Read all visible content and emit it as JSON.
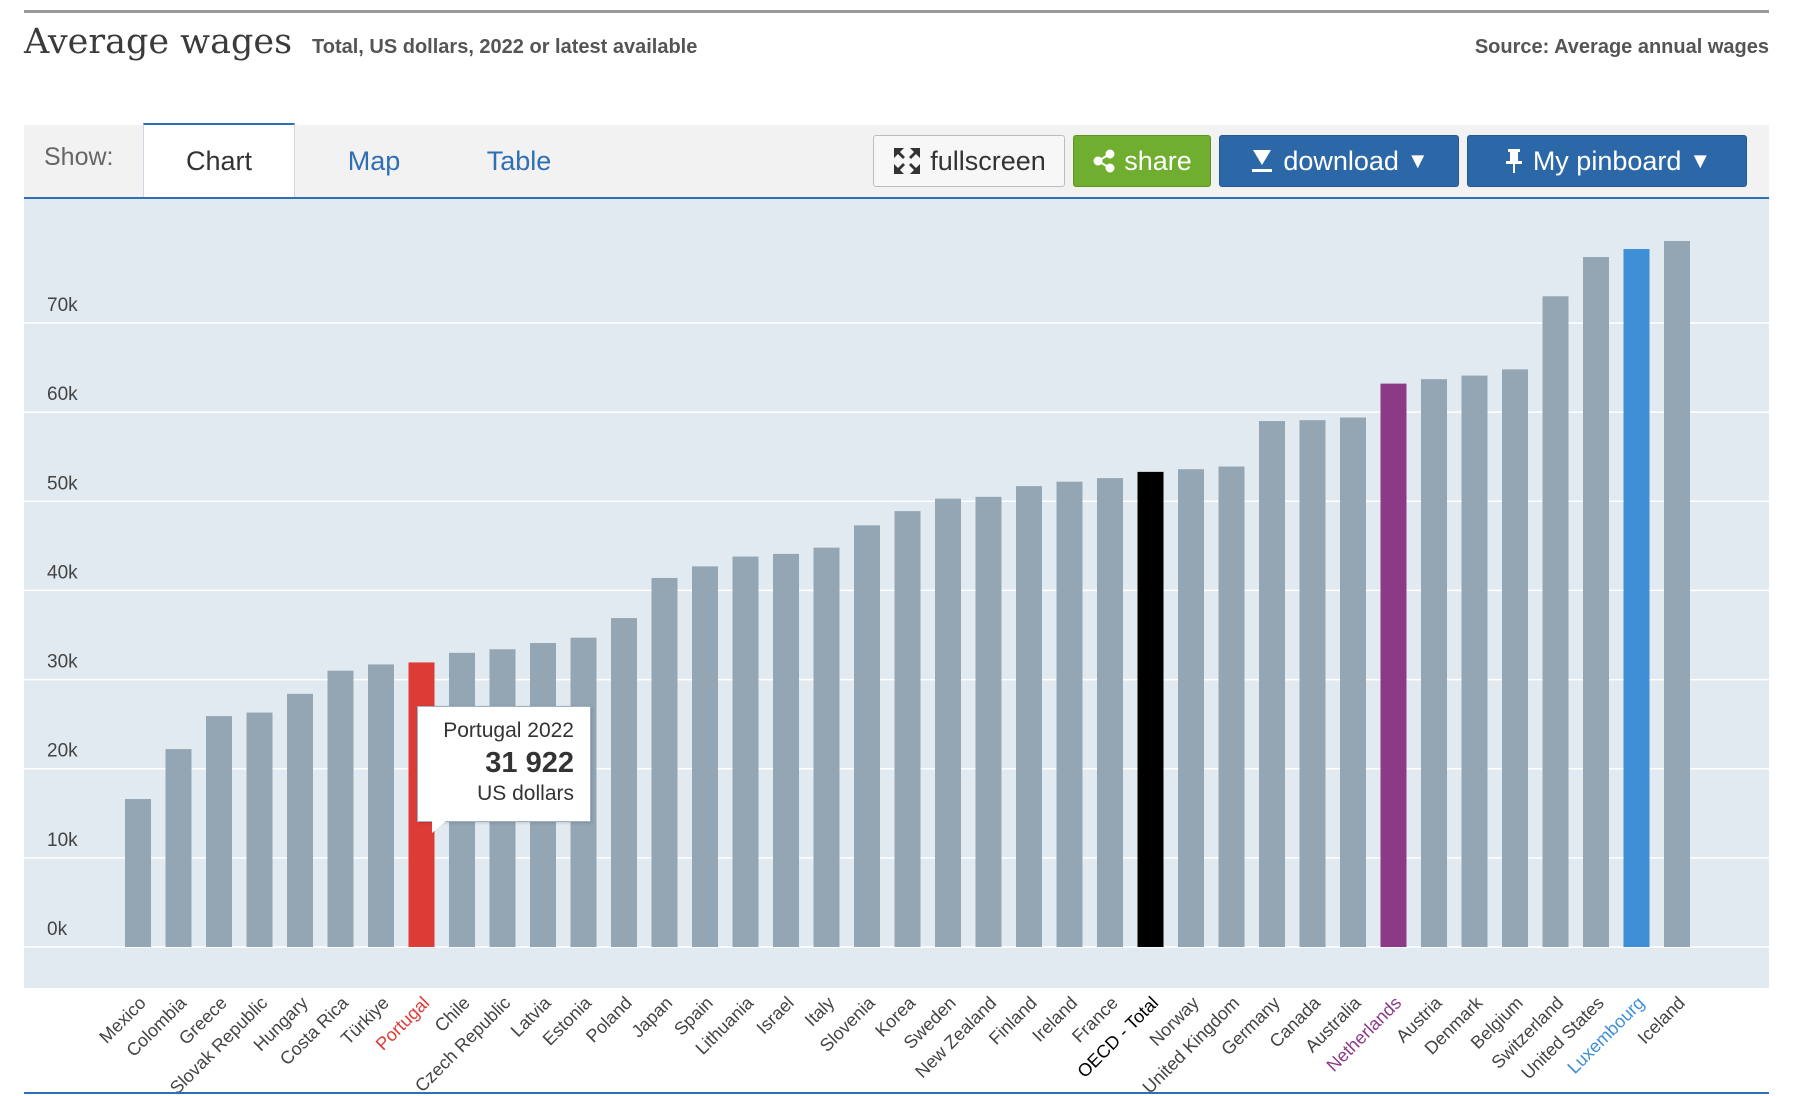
{
  "header": {
    "title": "Average wages",
    "subtitle": "Total, US dollars, 2022 or latest available",
    "source": "Source: Average annual wages"
  },
  "toolbar": {
    "show_label": "Show:",
    "tabs": [
      {
        "label": "Chart",
        "active": true
      },
      {
        "label": "Map",
        "active": false
      },
      {
        "label": "Table",
        "active": false
      }
    ],
    "fullscreen_label": "fullscreen",
    "share_label": "share",
    "download_label": "download",
    "pinboard_label": "My pinboard",
    "dropdown_glyph": "▼"
  },
  "tooltip": {
    "title": "Portugal 2022",
    "value": "31 922",
    "unit": "US dollars"
  },
  "colors": {
    "bar_default": "#94a6b4",
    "bar_highlight": "#dc3c35",
    "bar_oecd": "#000000",
    "bar_netherlands": "#8c3a86",
    "bar_luxembourg": "#3f8fd6",
    "plot_bg": "#e2eaf1"
  },
  "chart_data": {
    "type": "bar",
    "title": "Average wages",
    "xlabel": "",
    "ylabel": "",
    "ylim": [
      0,
      80000
    ],
    "yticks": [
      0,
      10000,
      20000,
      30000,
      40000,
      50000,
      60000,
      70000
    ],
    "ytick_labels": [
      "0k",
      "10k",
      "20k",
      "30k",
      "40k",
      "50k",
      "60k",
      "70k"
    ],
    "grid": true,
    "categories": [
      "Mexico",
      "Colombia",
      "Greece",
      "Slovak Republic",
      "Hungary",
      "Costa Rica",
      "Türkiye",
      "Portugal",
      "Chile",
      "Czech Republic",
      "Latvia",
      "Estonia",
      "Poland",
      "Japan",
      "Spain",
      "Lithuania",
      "Israel",
      "Italy",
      "Slovenia",
      "Korea",
      "Sweden",
      "New Zealand",
      "Finland",
      "Ireland",
      "France",
      "OECD - Total",
      "Norway",
      "United Kingdom",
      "Germany",
      "Canada",
      "Australia",
      "Netherlands",
      "Austria",
      "Denmark",
      "Belgium",
      "Switzerland",
      "United States",
      "Luxembourg",
      "Iceland"
    ],
    "values": [
      16600,
      22200,
      25900,
      26300,
      28400,
      31000,
      31700,
      31922,
      33000,
      33400,
      34100,
      34700,
      36900,
      41400,
      42700,
      43800,
      44100,
      44800,
      47300,
      48900,
      50300,
      50500,
      51700,
      52200,
      52600,
      53300,
      53600,
      53900,
      59000,
      59100,
      59400,
      63200,
      63700,
      64100,
      64800,
      73000,
      77400,
      78300,
      79200
    ],
    "highlights": {
      "Portugal": "#dc3c35",
      "OECD - Total": "#000000",
      "Netherlands": "#8c3a86",
      "Luxembourg": "#3f8fd6"
    }
  }
}
